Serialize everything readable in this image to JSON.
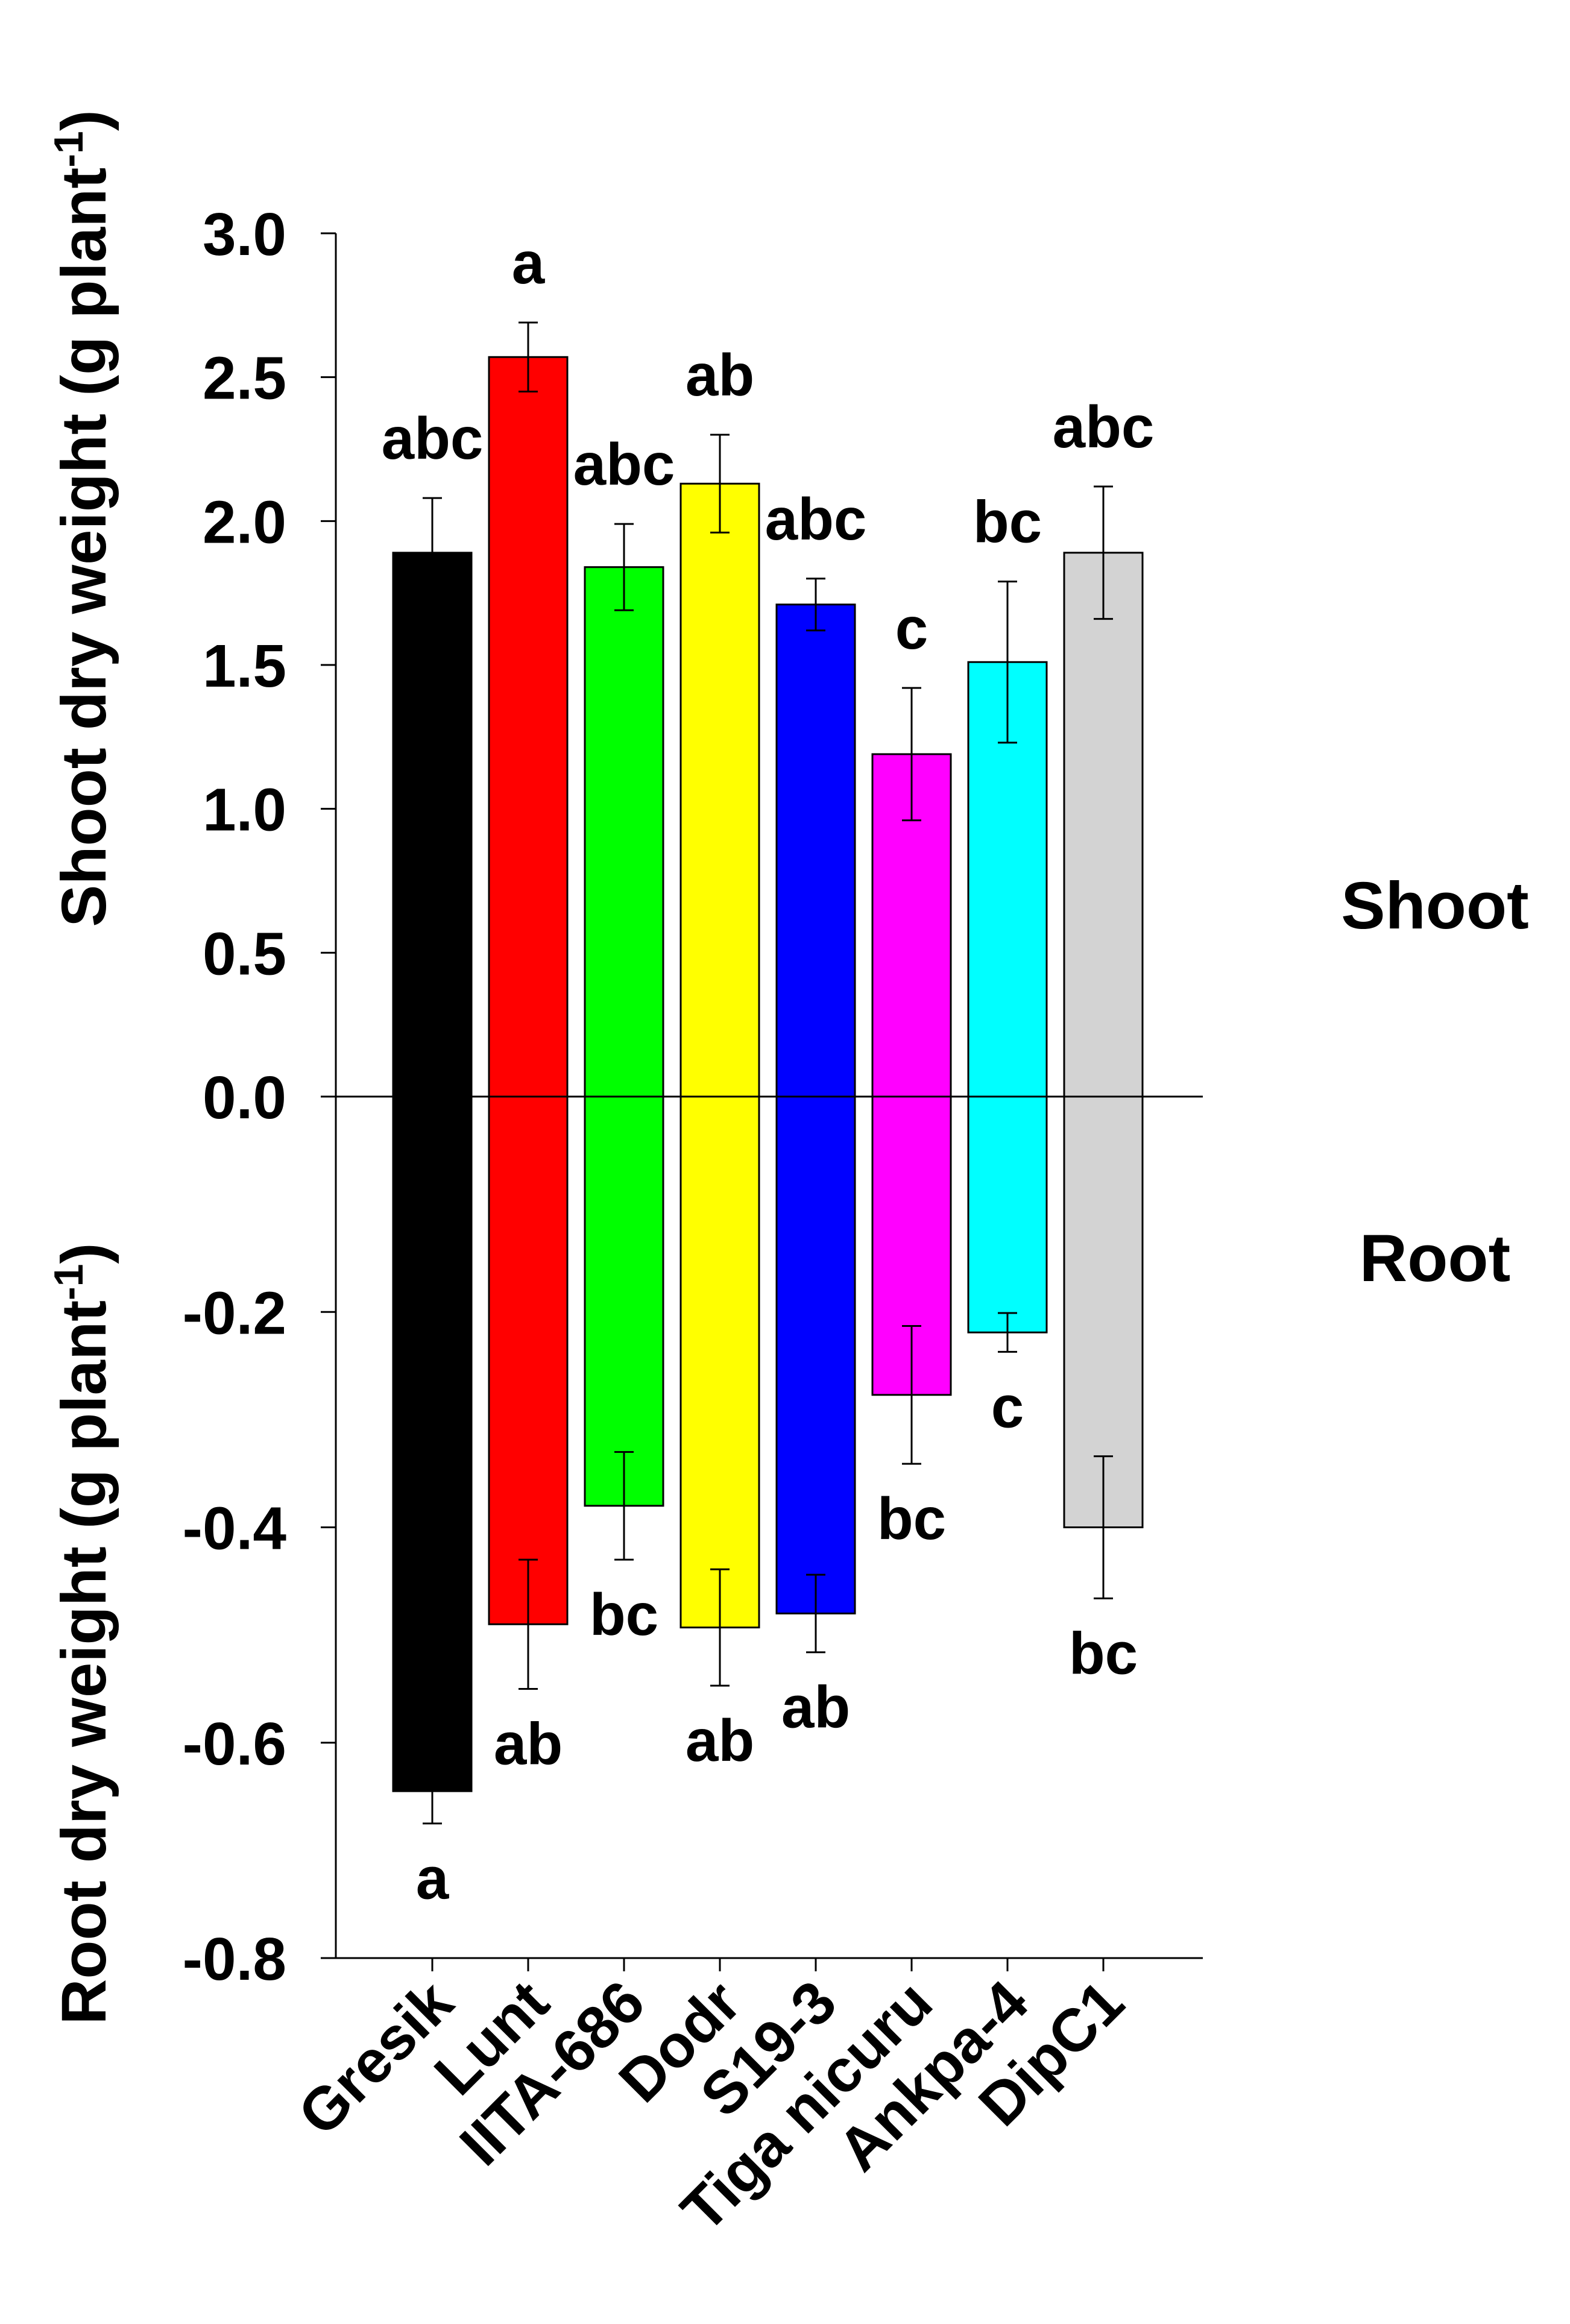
{
  "chart_data": {
    "type": "bar",
    "categories": [
      "Gresik",
      "Lunt",
      "IITA-686",
      "Dodr",
      "S19-3",
      "Tiga nicuru",
      "Ankpa-4",
      "DipC1"
    ],
    "colors": [
      "#000000",
      "#ff0000",
      "#00ff00",
      "#ffff00",
      "#0000ff",
      "#ff00ff",
      "#00ffff",
      "#d3d3d3"
    ],
    "shoot": {
      "axis_title": "Shoot dry weight (g plant",
      "axis_title_sup": "-1",
      "axis_title_end": ")",
      "section_label": "Shoot",
      "ylim": [
        0,
        3.0
      ],
      "ticks": [
        0.0,
        0.5,
        1.0,
        1.5,
        2.0,
        2.5,
        3.0
      ],
      "tick_labels": [
        "0.0",
        "0.5",
        "1.0",
        "1.5",
        "2.0",
        "2.5",
        "3.0"
      ],
      "values": [
        1.89,
        2.57,
        1.84,
        2.13,
        1.71,
        1.19,
        1.51,
        1.89
      ],
      "errors": [
        0.19,
        0.12,
        0.15,
        0.17,
        0.09,
        0.23,
        0.28,
        0.23
      ],
      "letters": [
        "abc",
        "a",
        "abc",
        "ab",
        "abc",
        "c",
        "bc",
        "abc"
      ]
    },
    "root": {
      "axis_title": "Root dry weight (g plant",
      "axis_title_sup": "-1",
      "axis_title_end": ")",
      "section_label": "Root",
      "ylim": [
        -0.8,
        0
      ],
      "ticks": [
        -0.2,
        -0.4,
        -0.6,
        -0.8
      ],
      "tick_labels": [
        "-0.2",
        "-0.4",
        "-0.6",
        "-0.8"
      ],
      "values": [
        -0.645,
        -0.49,
        -0.38,
        -0.493,
        -0.48,
        -0.277,
        -0.219,
        -0.4
      ],
      "errors": [
        0.03,
        0.06,
        0.05,
        0.054,
        0.036,
        0.064,
        0.018,
        0.066
      ],
      "letters": [
        "a",
        "ab",
        "bc",
        "ab",
        "ab",
        "bc",
        "c",
        "bc"
      ]
    }
  }
}
